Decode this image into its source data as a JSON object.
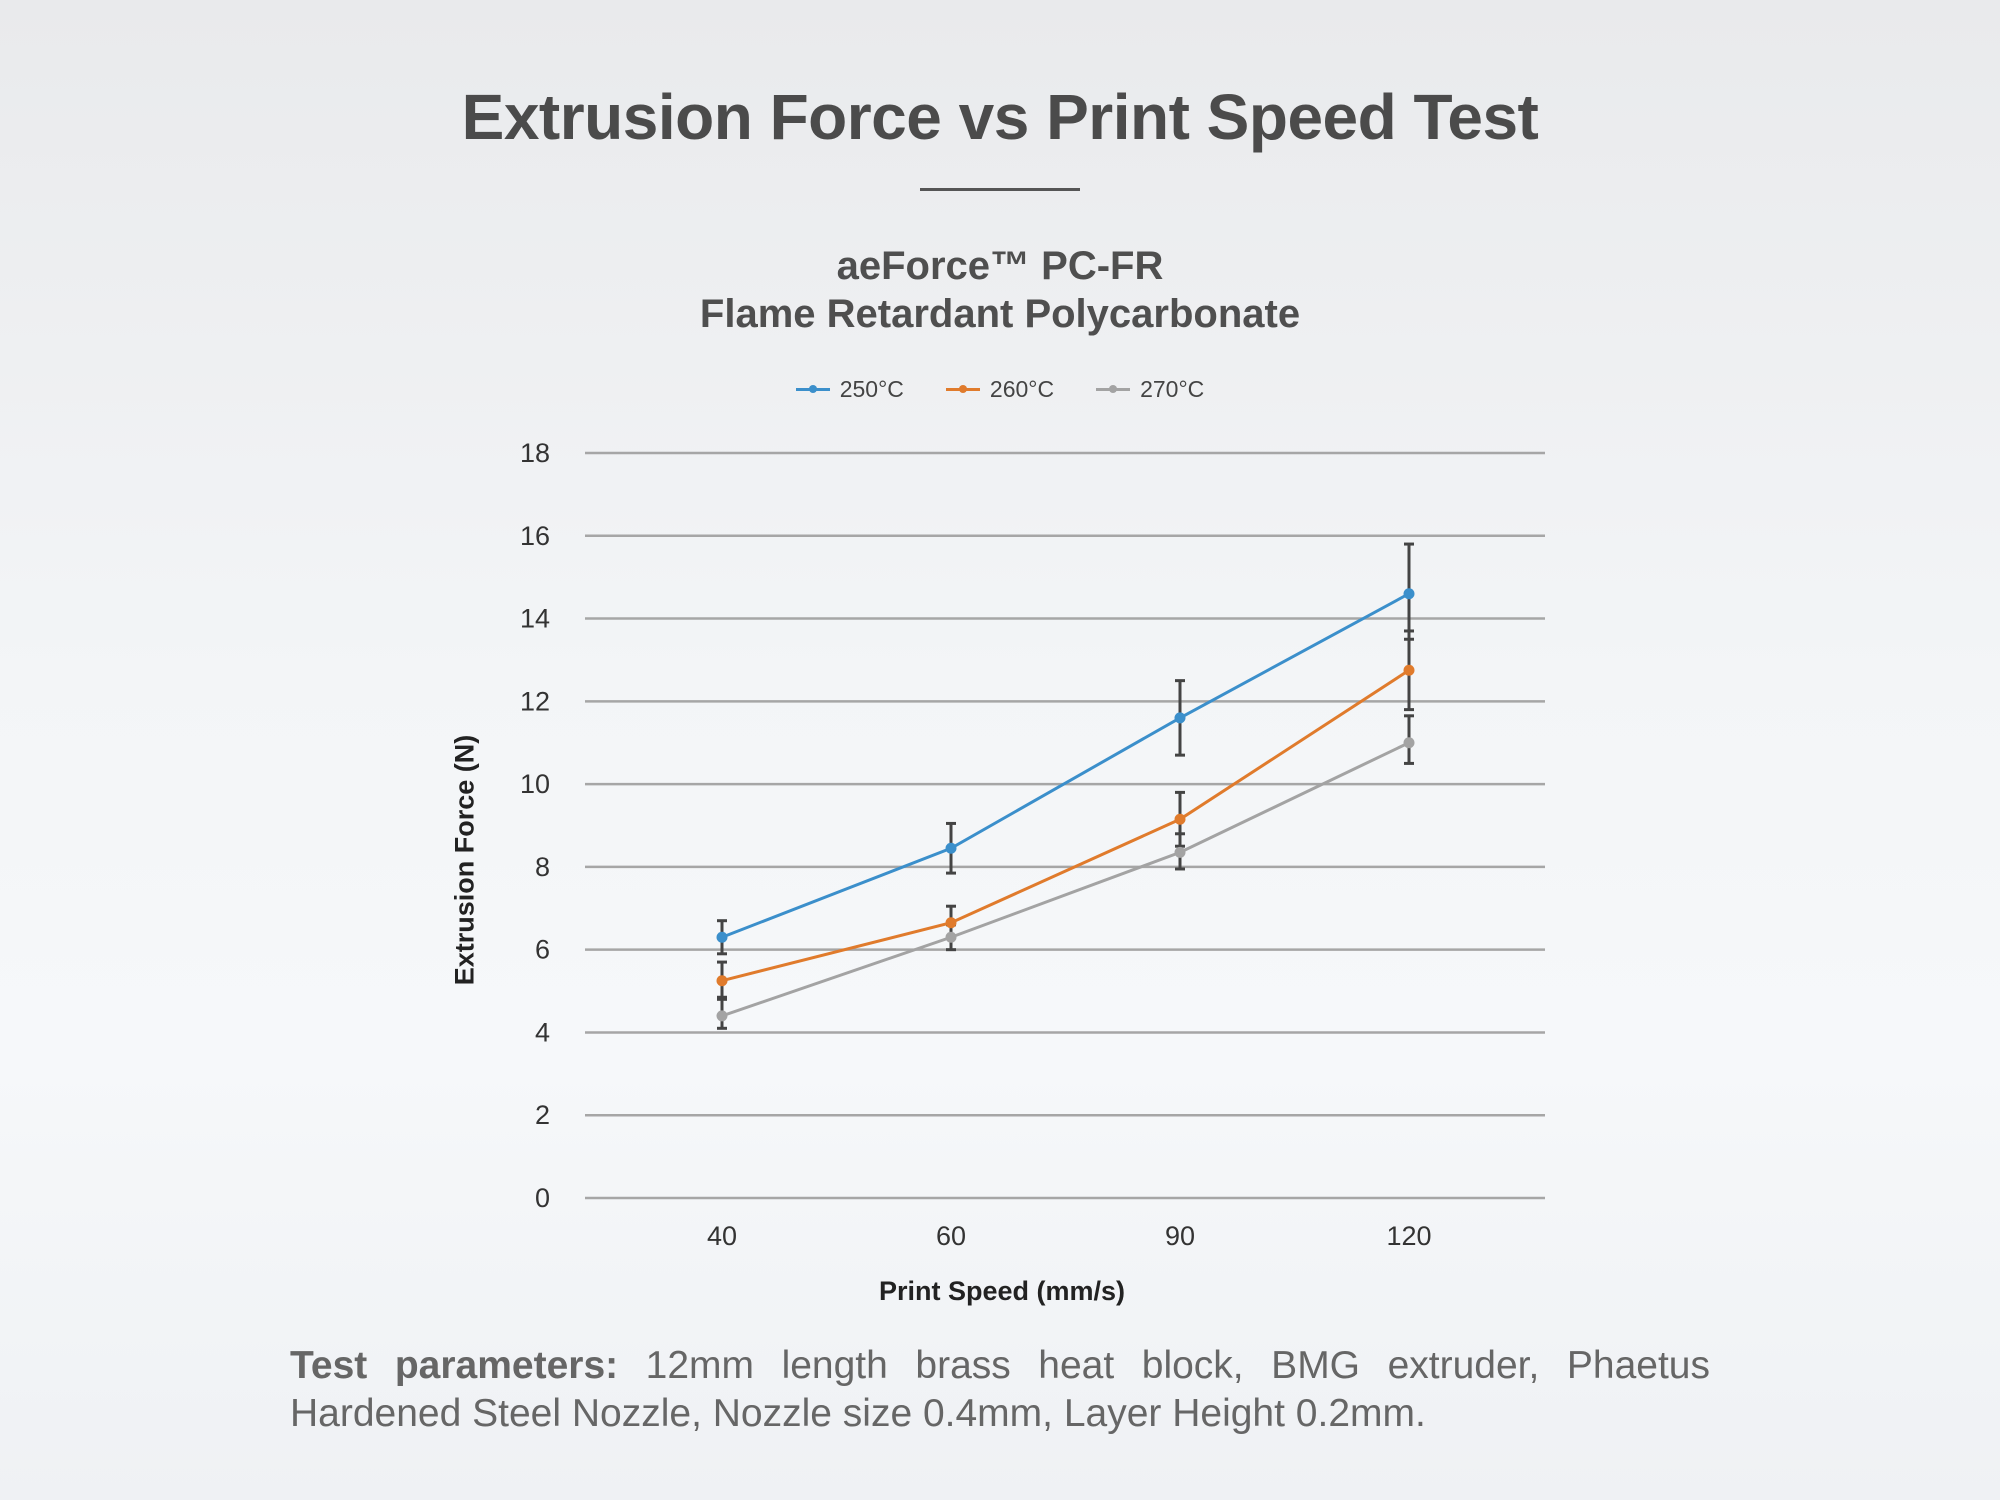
{
  "page": {
    "title": "Extrusion Force vs Print Speed Test",
    "footnote_lead": "Test parameters:",
    "footnote_text": " 12mm length brass heat block, BMG extruder, Phaetus Hardened Steel Nozzle, Nozzle size 0.4mm, Layer Height 0.2mm."
  },
  "chart_data": {
    "type": "line",
    "title": "aeForce™ PC-FR",
    "subtitle": "Flame Retardant Polycarbonate",
    "xlabel": "Print Speed (mm/s)",
    "ylabel": "Extrusion Force (N)",
    "categories": [
      "40",
      "60",
      "90",
      "120"
    ],
    "ylim": [
      0,
      18
    ],
    "yticks": [
      "0",
      "2",
      "4",
      "6",
      "8",
      "10",
      "12",
      "14",
      "16",
      "18"
    ],
    "grid": "horizontal",
    "legend_position": "top-center",
    "series": [
      {
        "name": "250°C",
        "color": "#3b8fcb",
        "values": [
          6.3,
          8.45,
          11.6,
          14.6
        ],
        "error_low": [
          5.9,
          7.85,
          10.7,
          13.5
        ],
        "error_high": [
          6.7,
          9.05,
          12.5,
          15.8
        ]
      },
      {
        "name": "260°C",
        "color": "#e07b2c",
        "values": [
          5.25,
          6.65,
          9.15,
          12.75
        ],
        "error_low": [
          4.8,
          6.3,
          8.5,
          11.8
        ],
        "error_high": [
          5.7,
          7.05,
          9.8,
          13.7
        ]
      },
      {
        "name": "270°C",
        "color": "#a3a3a3",
        "values": [
          4.4,
          6.3,
          8.35,
          11.0
        ],
        "error_low": [
          4.1,
          6.0,
          7.95,
          10.5
        ],
        "error_high": [
          4.85,
          6.6,
          8.8,
          11.65
        ]
      }
    ]
  }
}
